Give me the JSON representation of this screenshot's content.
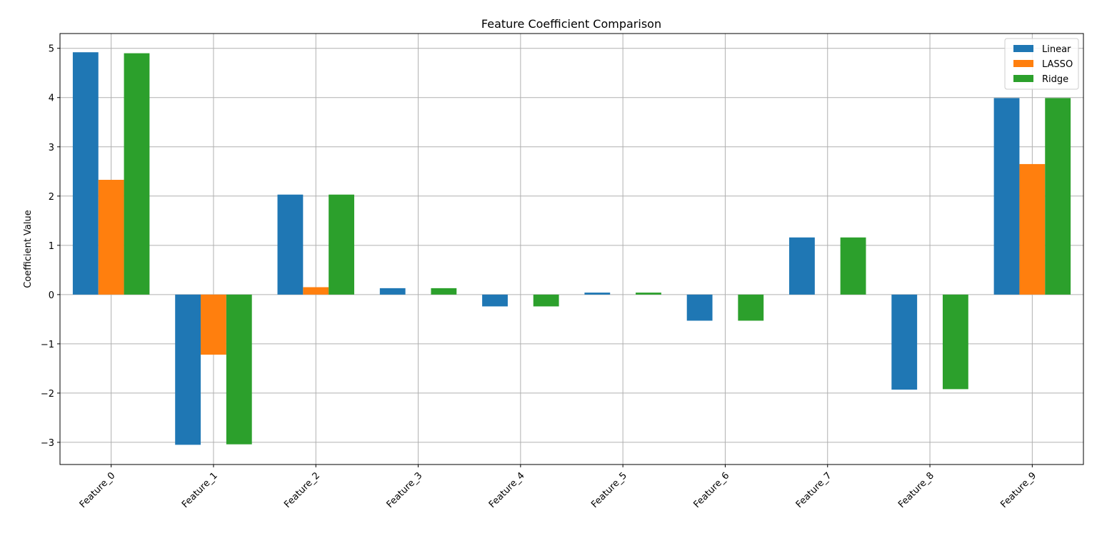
{
  "chart_data": {
    "type": "bar",
    "title": "Feature Coefficient Comparison",
    "xlabel": "",
    "ylabel": "Coefficient Value",
    "categories": [
      "Feature_0",
      "Feature_1",
      "Feature_2",
      "Feature_3",
      "Feature_4",
      "Feature_5",
      "Feature_6",
      "Feature_7",
      "Feature_8",
      "Feature_9"
    ],
    "series": [
      {
        "name": "Linear",
        "color": "#1f77b4",
        "values": [
          4.92,
          -3.05,
          2.03,
          0.13,
          -0.24,
          0.04,
          -0.53,
          1.16,
          -1.93,
          3.99
        ]
      },
      {
        "name": "LASSO",
        "color": "#ff7f0e",
        "values": [
          2.33,
          -1.22,
          0.15,
          0.0,
          0.0,
          0.0,
          0.0,
          0.0,
          0.0,
          2.65
        ]
      },
      {
        "name": "Ridge",
        "color": "#2ca02c",
        "values": [
          4.9,
          -3.04,
          2.03,
          0.13,
          -0.24,
          0.04,
          -0.53,
          1.16,
          -1.92,
          3.99
        ]
      }
    ],
    "ylim": [
      -3.45,
      5.3
    ],
    "yticks": [
      -3,
      -2,
      -1,
      0,
      1,
      2,
      3,
      4,
      5
    ],
    "grid": true,
    "legend_position": "top-right",
    "xtick_rotation": 45
  }
}
